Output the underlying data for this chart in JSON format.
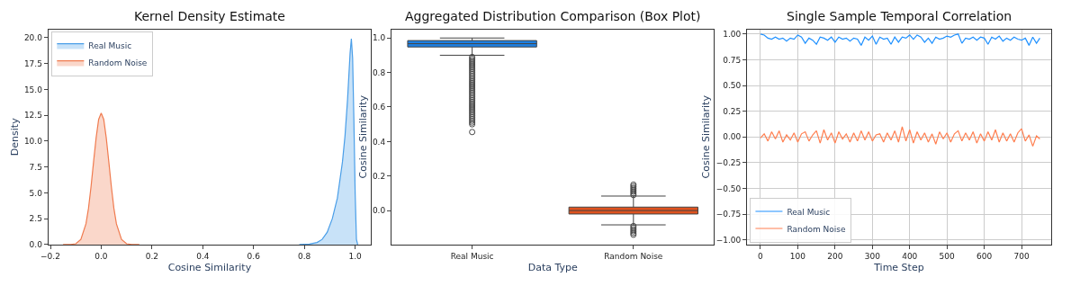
{
  "chart_data": [
    {
      "type": "area",
      "title": "Kernel Density Estimate",
      "xlabel": "Cosine Similarity",
      "ylabel": "Density",
      "legend": "top left",
      "grid": false,
      "xlim": [
        -0.208,
        1.062
      ],
      "ylim": [
        0,
        20.8
      ],
      "xticks": [
        {
          "value": -0.2,
          "label": "−0.2"
        },
        {
          "value": 0,
          "label": "0.0"
        },
        0.2,
        0.4,
        0.6,
        0.8,
        {
          "value": 1,
          "label": "1.0"
        }
      ],
      "yticks": [
        {
          "value": 0,
          "label": "0.0"
        },
        2.5,
        {
          "value": 5,
          "label": "5.0"
        },
        7.5,
        {
          "value": 10,
          "label": "10.0"
        },
        12.5,
        {
          "value": 15,
          "label": "15.0"
        },
        17.5,
        {
          "value": 20,
          "label": "20.0"
        }
      ],
      "series": [
        {
          "name": "Real Music",
          "color": "#4a9ee8",
          "x": [
            0.78,
            0.82,
            0.85,
            0.87,
            0.89,
            0.91,
            0.93,
            0.95,
            0.96,
            0.97,
            0.98,
            0.985,
            0.99,
            0.995,
            1.0,
            1.005,
            1.01
          ],
          "values": [
            0,
            0.05,
            0.2,
            0.5,
            1.2,
            2.5,
            4.5,
            8,
            10.5,
            14,
            18.5,
            19.9,
            18,
            12,
            5,
            0.5,
            0
          ]
        },
        {
          "name": "Random Noise",
          "color": "#f07b4f",
          "x": [
            -0.15,
            -0.12,
            -0.1,
            -0.08,
            -0.06,
            -0.05,
            -0.04,
            -0.03,
            -0.02,
            -0.01,
            0,
            0.01,
            0.02,
            0.03,
            0.04,
            0.05,
            0.06,
            0.08,
            0.1,
            0.12,
            0.15
          ],
          "values": [
            0,
            0.01,
            0.08,
            0.5,
            2.0,
            3.5,
            5.6,
            8.0,
            10.3,
            12.1,
            12.7,
            12.1,
            10.3,
            8.0,
            5.6,
            3.5,
            2.0,
            0.5,
            0.08,
            0.01,
            0
          ]
        }
      ]
    },
    {
      "type": "box",
      "title": "Aggregated Distribution Comparison (Box Plot)",
      "xlabel": "Data Type",
      "ylabel": "Cosine Similarity",
      "grid": false,
      "categories": [
        "Real Music",
        "Random Noise"
      ],
      "ylim": [
        -0.197,
        1.05
      ],
      "yticks": [
        {
          "value": 0,
          "label": "0.0"
        },
        0.2,
        0.4,
        0.6,
        0.8,
        {
          "value": 1,
          "label": "1.0"
        }
      ],
      "colors": [
        "#1e7fe0",
        "#e0521e"
      ],
      "boxes": [
        {
          "low": 0.9,
          "q1": 0.948,
          "median": 0.967,
          "q3": 0.985,
          "high": 1.0,
          "outliers": [
            0.89,
            0.88,
            0.87,
            0.86,
            0.85,
            0.84,
            0.83,
            0.82,
            0.81,
            0.8,
            0.79,
            0.78,
            0.77,
            0.76,
            0.75,
            0.74,
            0.73,
            0.72,
            0.71,
            0.7,
            0.69,
            0.68,
            0.67,
            0.66,
            0.65,
            0.64,
            0.63,
            0.62,
            0.61,
            0.6,
            0.59,
            0.58,
            0.57,
            0.56,
            0.55,
            0.54,
            0.53,
            0.52,
            0.51,
            0.5,
            0.455
          ]
        },
        {
          "low": -0.083,
          "q1": -0.02,
          "median": 0.0,
          "q3": 0.02,
          "high": 0.084,
          "outliers": [
            0.09,
            0.1,
            0.11,
            0.12,
            0.13,
            0.14,
            0.15,
            -0.09,
            -0.1,
            -0.11,
            -0.12,
            -0.13,
            -0.14
          ]
        }
      ]
    },
    {
      "type": "line",
      "title": "Single Sample Temporal Correlation",
      "xlabel": "Time Step",
      "ylabel": "Cosine Similarity",
      "legend": "bottom left",
      "grid": true,
      "xlim": [
        -36,
        779
      ],
      "ylim": [
        -1.045,
        1.045
      ],
      "xticks": [
        0,
        100,
        200,
        300,
        400,
        500,
        600,
        700
      ],
      "yticks": [
        {
          "value": -1,
          "label": "−1.00"
        },
        {
          "value": -0.75,
          "label": "−0.75"
        },
        {
          "value": -0.5,
          "label": "−0.50"
        },
        {
          "value": -0.25,
          "label": "−0.25"
        },
        {
          "value": 0,
          "label": "0.00"
        },
        0.25,
        {
          "value": 0.5,
          "label": "0.50"
        },
        0.75,
        {
          "value": 1,
          "label": "1.00"
        }
      ],
      "x": [
        0,
        10,
        20,
        30,
        40,
        50,
        60,
        70,
        80,
        90,
        100,
        110,
        120,
        130,
        140,
        150,
        160,
        170,
        180,
        190,
        200,
        210,
        220,
        230,
        240,
        250,
        260,
        270,
        280,
        290,
        300,
        310,
        320,
        330,
        340,
        350,
        360,
        370,
        380,
        390,
        400,
        410,
        420,
        430,
        440,
        450,
        460,
        470,
        480,
        490,
        500,
        510,
        520,
        530,
        540,
        550,
        560,
        570,
        580,
        590,
        600,
        610,
        620,
        630,
        640,
        650,
        660,
        670,
        680,
        690,
        700,
        710,
        720,
        730,
        740,
        749
      ],
      "series": [
        {
          "name": "Real Music",
          "color": "#1e90ff",
          "values": [
            1.0,
            0.99,
            0.96,
            0.95,
            0.97,
            0.95,
            0.96,
            0.93,
            0.96,
            0.95,
            0.99,
            0.97,
            0.91,
            0.96,
            0.94,
            0.9,
            0.97,
            0.96,
            0.94,
            0.97,
            0.92,
            0.97,
            0.95,
            0.96,
            0.93,
            0.96,
            0.95,
            0.89,
            0.97,
            0.94,
            0.98,
            0.9,
            0.97,
            0.95,
            0.96,
            0.9,
            0.97,
            0.92,
            0.97,
            0.96,
            0.99,
            0.95,
            0.99,
            0.97,
            0.92,
            0.96,
            0.91,
            0.97,
            0.95,
            0.96,
            0.98,
            0.97,
            0.99,
            1.0,
            0.91,
            0.96,
            0.95,
            0.97,
            0.94,
            0.97,
            0.96,
            0.9,
            0.97,
            0.95,
            0.98,
            0.93,
            0.96,
            0.94,
            0.97,
            0.95,
            0.94,
            0.96,
            0.89,
            0.97,
            0.91,
            0.96
          ]
        },
        {
          "name": "Random Noise",
          "color": "#ff7f50",
          "values": [
            -0.01,
            0.03,
            -0.04,
            0.05,
            -0.02,
            0.06,
            -0.05,
            0.02,
            -0.03,
            0.04,
            -0.05,
            0.03,
            0.05,
            -0.04,
            0.02,
            0.06,
            -0.06,
            0.07,
            -0.03,
            0.04,
            -0.06,
            0.05,
            -0.02,
            0.03,
            -0.05,
            0.04,
            -0.04,
            0.06,
            -0.03,
            0.05,
            -0.04,
            0.02,
            0.03,
            -0.05,
            0.04,
            -0.03,
            0.06,
            -0.05,
            0.1,
            -0.04,
            0.07,
            -0.06,
            0.05,
            -0.03,
            0.04,
            -0.05,
            0.03,
            -0.07,
            0.05,
            -0.02,
            0.04,
            -0.05,
            0.03,
            0.06,
            -0.04,
            0.04,
            -0.03,
            0.05,
            -0.06,
            0.03,
            -0.04,
            0.05,
            -0.03,
            0.07,
            -0.05,
            0.04,
            -0.04,
            0.03,
            -0.05,
            0.04,
            0.08,
            -0.04,
            0.02,
            -0.09,
            0.01,
            -0.02
          ]
        }
      ]
    }
  ]
}
